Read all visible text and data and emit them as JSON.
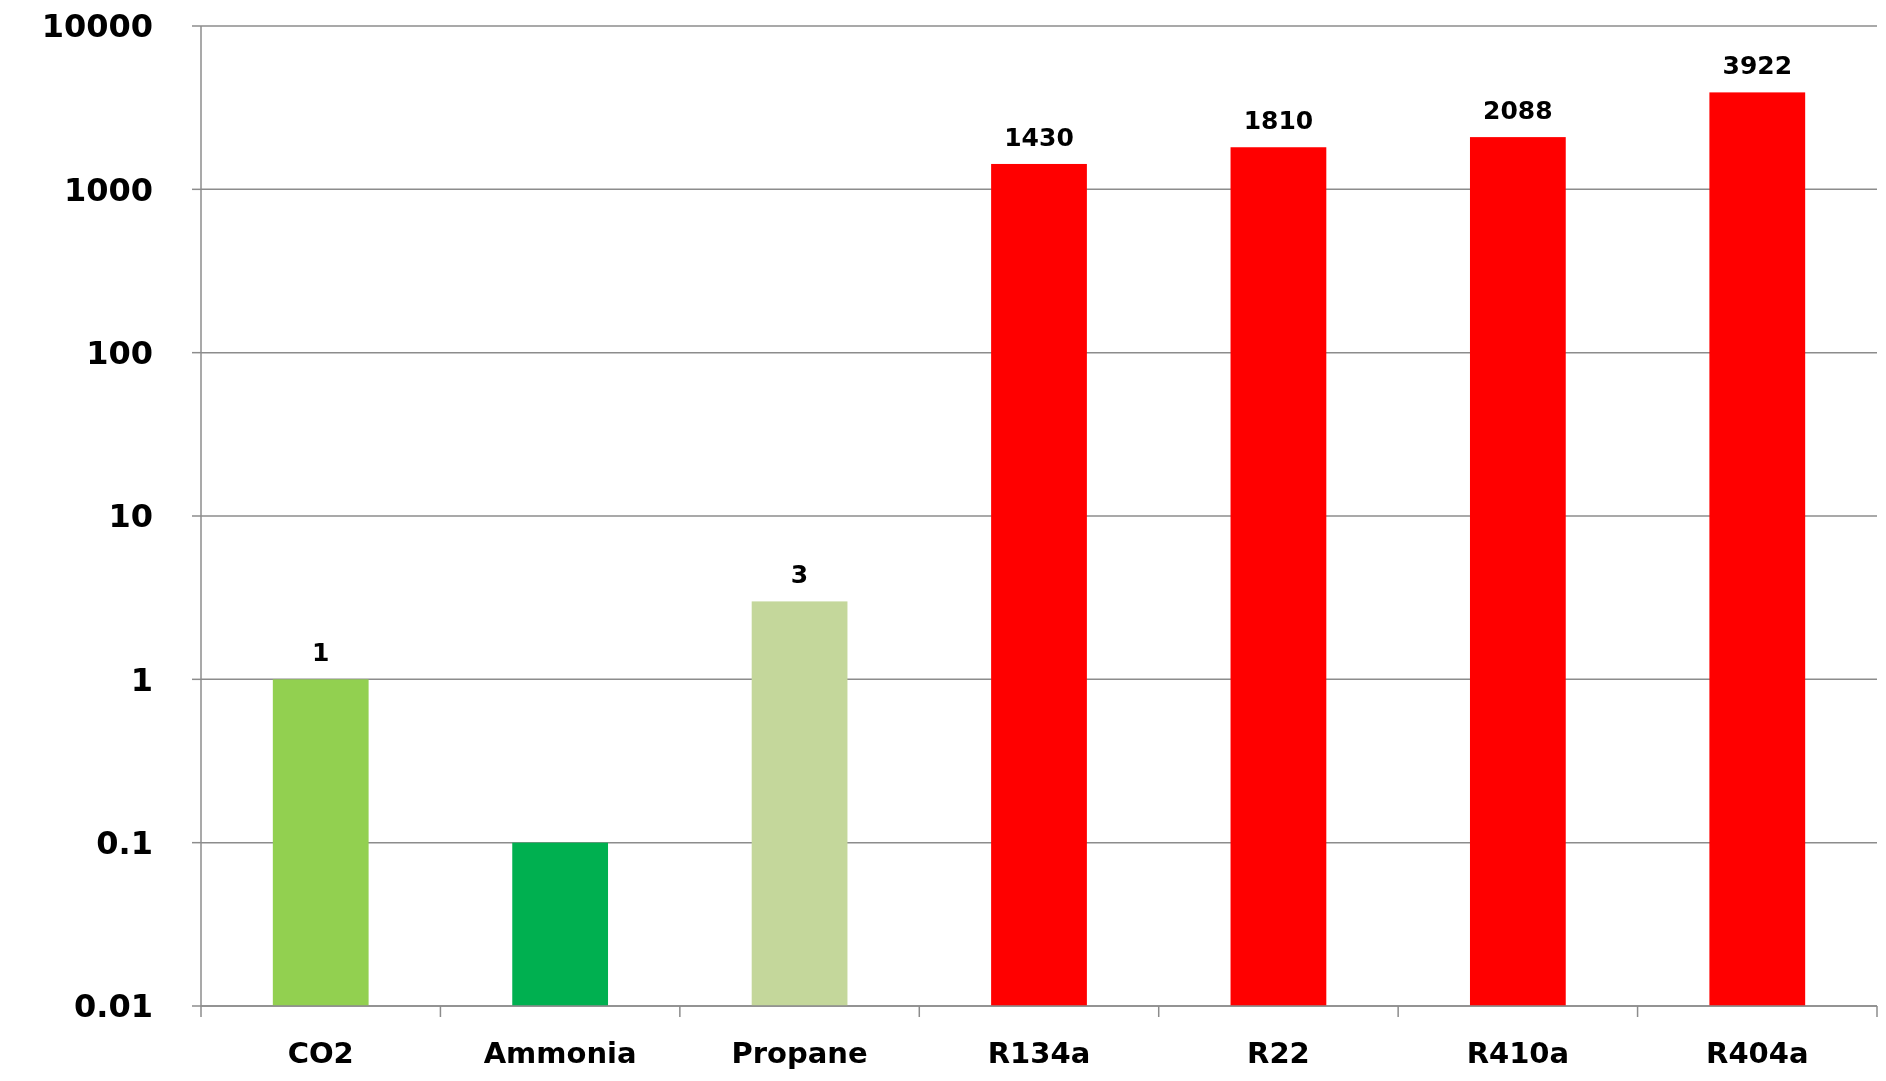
{
  "chart_data": {
    "type": "bar",
    "categories": [
      "CO2",
      "Ammonia",
      "Propane",
      "R134a",
      "R22",
      "R410a",
      "R404a"
    ],
    "values": [
      1,
      0.1,
      3,
      1430,
      1810,
      2088,
      3922
    ],
    "colors": [
      "#92d050",
      "#00b050",
      "#c4d79b",
      "#ff0000",
      "#ff0000",
      "#ff0000",
      "#ff0000"
    ],
    "value_labels": [
      "1",
      null,
      "3",
      "1430",
      "1810",
      "2088",
      "3922"
    ],
    "log": true,
    "ylim": [
      0.01,
      10000
    ],
    "yticks": [
      0.01,
      0.1,
      1,
      10,
      100,
      1000,
      10000
    ],
    "grid": "y"
  }
}
